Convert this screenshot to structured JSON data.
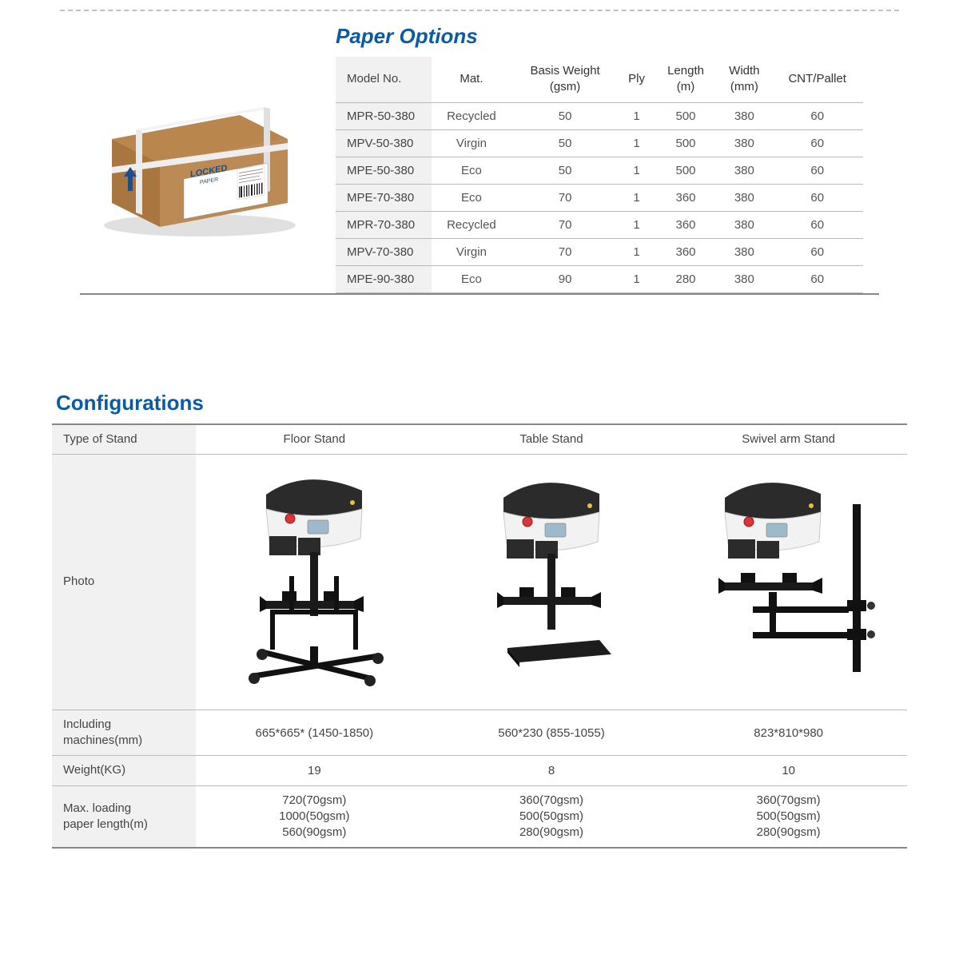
{
  "titles": {
    "paper": "Paper Options",
    "config": "Configurations"
  },
  "colors": {
    "heading": "#0a5aa6",
    "row_label_bg": "#f1f1f1",
    "border": "#bbbbbb",
    "text": "#444444"
  },
  "paper_table": {
    "columns": [
      "Model No.",
      "Mat.",
      "Basis Weight\n(gsm)",
      "Ply",
      "Length\n(m)",
      "Width\n(mm)",
      "CNT/Pallet"
    ],
    "rows": [
      [
        "MPR-50-380",
        "Recycled",
        "50",
        "1",
        "500",
        "380",
        "60"
      ],
      [
        "MPV-50-380",
        "Virgin",
        "50",
        "1",
        "500",
        "380",
        "60"
      ],
      [
        "MPE-50-380",
        "Eco",
        "50",
        "1",
        "500",
        "380",
        "60"
      ],
      [
        "MPE-70-380",
        "Eco",
        "70",
        "1",
        "360",
        "380",
        "60"
      ],
      [
        "MPR-70-380",
        "Recycled",
        "70",
        "1",
        "360",
        "380",
        "60"
      ],
      [
        "MPV-70-380",
        "Virgin",
        "70",
        "1",
        "360",
        "380",
        "60"
      ],
      [
        "MPE-90-380",
        "Eco",
        "90",
        "1",
        "280",
        "380",
        "60"
      ]
    ]
  },
  "box": {
    "label_brand": "LOCKED",
    "label_sub": "PAPER",
    "colors": {
      "top": "#b9864e",
      "front": "#a97640",
      "side": "#8e6234",
      "strap": "#e9e9e9",
      "label_bg": "#ffffff"
    }
  },
  "config_table": {
    "row_labels": [
      "Type of Stand",
      "Photo",
      "Including machines(mm)",
      "Weight(KG)",
      "Max. loading\npaper length(m)"
    ],
    "stands": [
      {
        "name": "Floor Stand",
        "dimensions": "665*665* (1450-1850)",
        "weight": "19",
        "loading": "720(70gsm)\n1000(50gsm)\n560(90gsm)"
      },
      {
        "name": "Table Stand",
        "dimensions": "560*230 (855-1055)",
        "weight": "8",
        "loading": "360(70gsm)\n500(50gsm)\n280(90gsm)"
      },
      {
        "name": "Swivel arm Stand",
        "dimensions": "823*810*980",
        "weight": "10",
        "loading": "360(70gsm)\n500(50gsm)\n280(90gsm)"
      }
    ]
  },
  "machine_colors": {
    "body_light": "#f2f2f2",
    "body_dark": "#2b2b2b",
    "screen": "#9fb9cc",
    "button_red": "#d33",
    "metal": "#1a1a1a"
  }
}
